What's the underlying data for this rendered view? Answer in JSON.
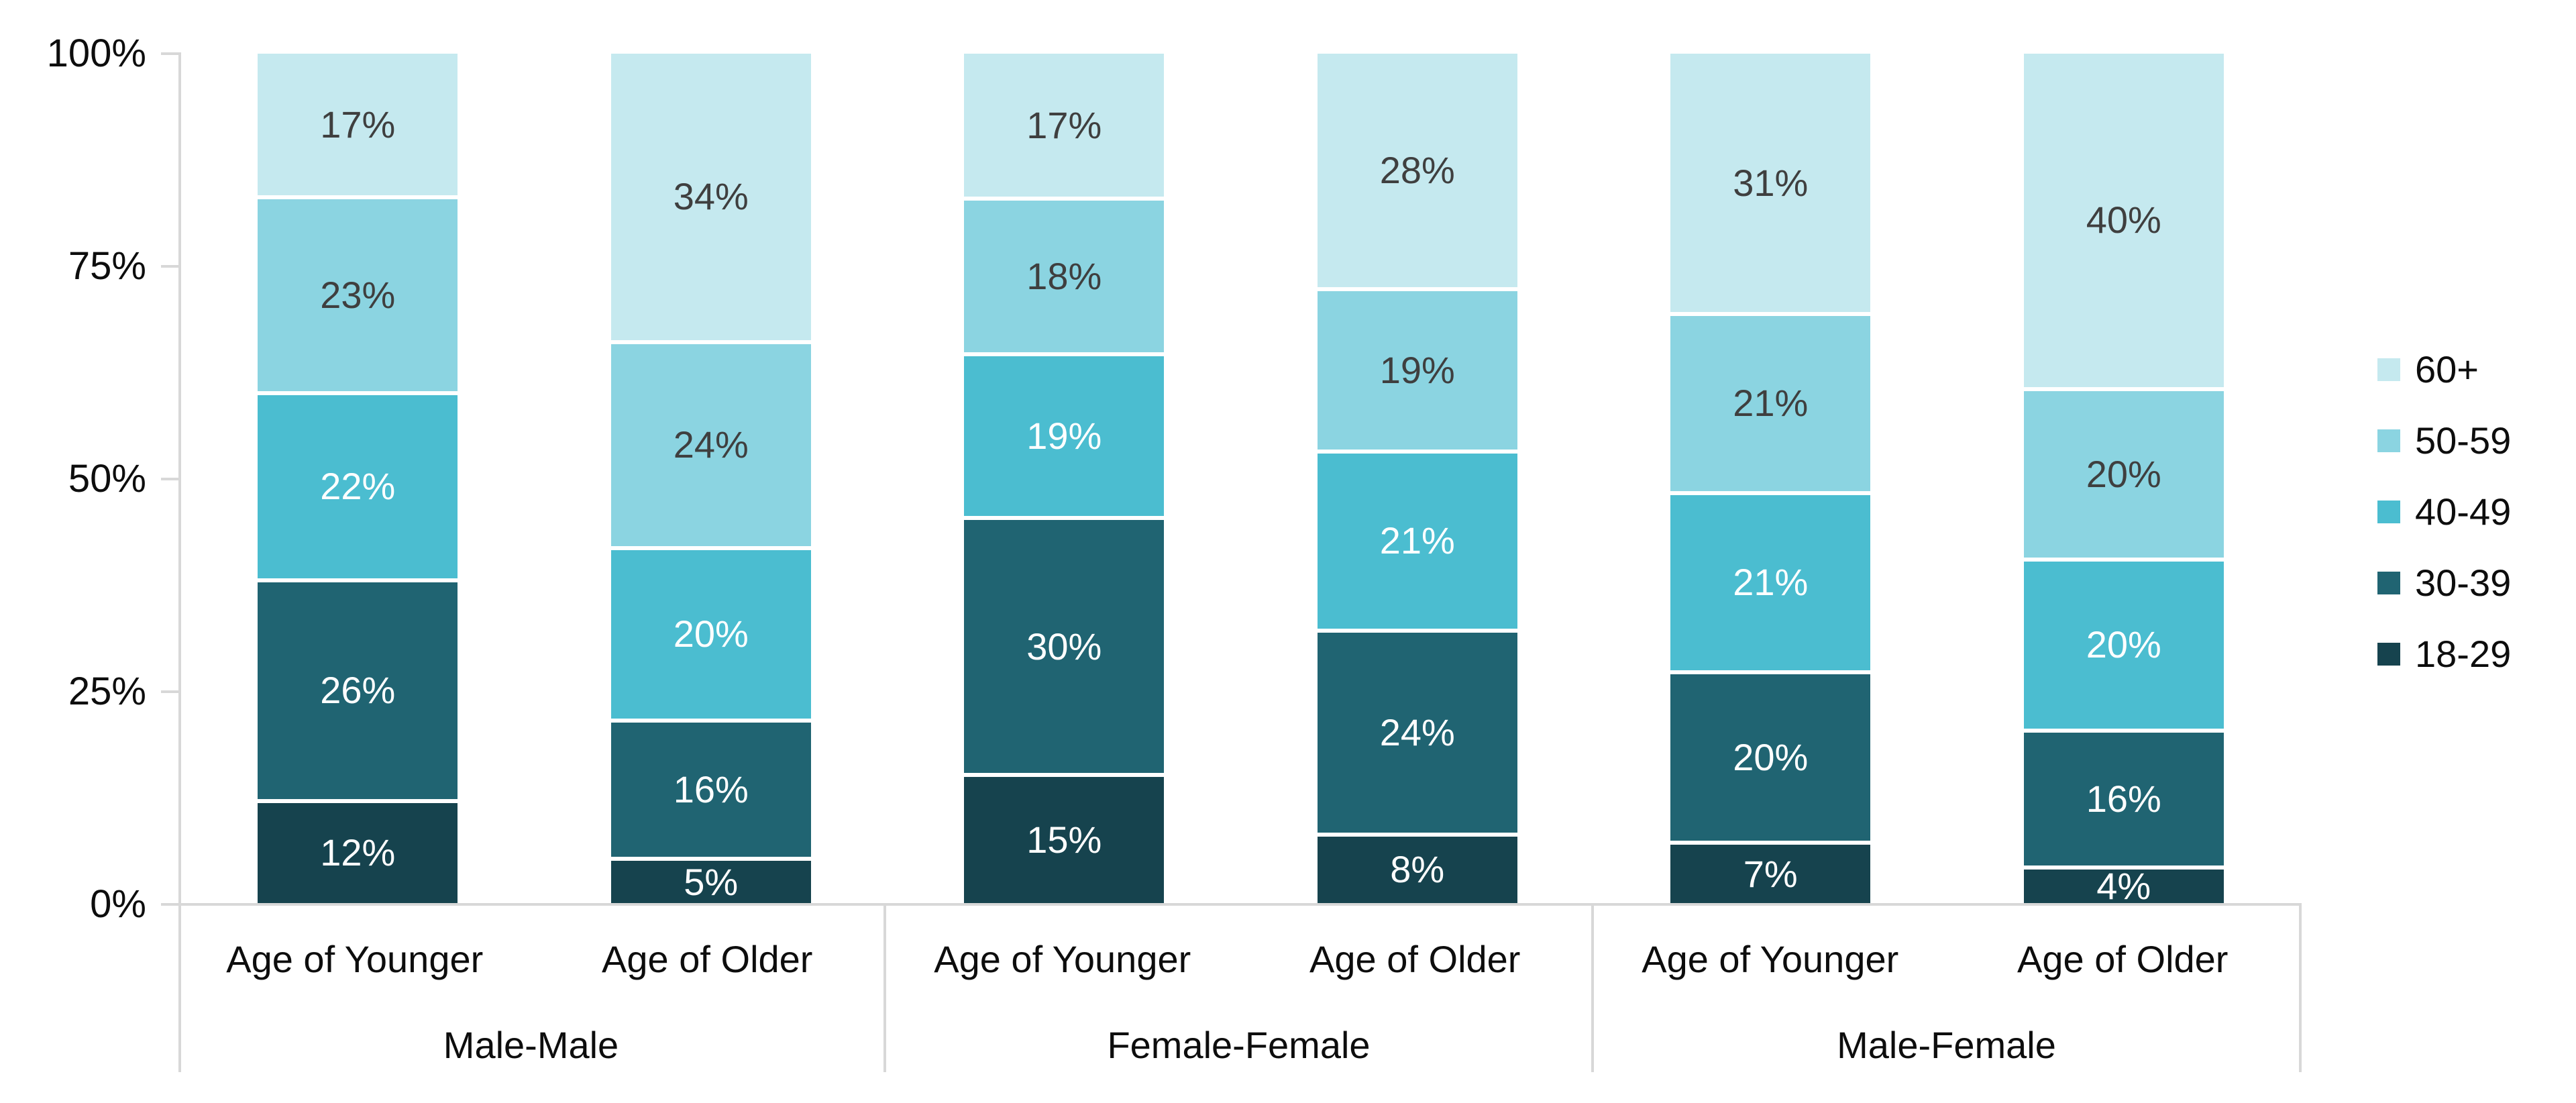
{
  "chart_data": {
    "type": "bar",
    "subtype": "100% stacked column",
    "title": "",
    "y_axis": {
      "range": [
        0,
        100
      ],
      "ticks": [
        {
          "value": 100,
          "label": "100%"
        },
        {
          "value": 75,
          "label": "75%"
        },
        {
          "value": 50,
          "label": "50%"
        },
        {
          "value": 25,
          "label": "25%"
        },
        {
          "value": 0,
          "label": "0%"
        }
      ]
    },
    "legend": {
      "position": "right",
      "entries": [
        "60+",
        "50-59",
        "40-49",
        "30-39",
        "18-29"
      ]
    },
    "series_order_bottom_to_top": [
      "18-29",
      "30-39",
      "40-49",
      "50-59",
      "60+"
    ],
    "palette": {
      "60+": "#C5E9EF",
      "50-59": "#8BD4E1",
      "40-49": "#4BBDD0",
      "30-39": "#206472",
      "18-29": "#16434E"
    },
    "data_label_colors": {
      "60+": "#3F3F3F",
      "50-59": "#3F3F3F",
      "40-49": "#FFFFFF",
      "30-39": "#FFFFFF",
      "18-29": "#FFFFFF"
    },
    "axis_color": "#D8D8D8",
    "text_color": "#0D0D0D",
    "value_suffix": "%",
    "groups": [
      {
        "label": "Male-Male",
        "bars": [
          {
            "label": "Age of Younger",
            "values": {
              "18-29": 12,
              "30-39": 26,
              "40-49": 22,
              "50-59": 23,
              "60+": 17
            }
          },
          {
            "label": "Age of Older",
            "values": {
              "18-29": 5,
              "30-39": 16,
              "40-49": 20,
              "50-59": 24,
              "60+": 34
            }
          }
        ]
      },
      {
        "label": "Female-Female",
        "bars": [
          {
            "label": "Age of Younger",
            "values": {
              "18-29": 15,
              "30-39": 30,
              "40-49": 19,
              "50-59": 18,
              "60+": 17
            }
          },
          {
            "label": "Age of Older",
            "values": {
              "18-29": 8,
              "30-39": 24,
              "40-49": 21,
              "50-59": 19,
              "60+": 28
            }
          }
        ]
      },
      {
        "label": "Male-Female",
        "bars": [
          {
            "label": "Age of Younger",
            "values": {
              "18-29": 7,
              "30-39": 20,
              "40-49": 21,
              "50-59": 21,
              "60+": 31
            }
          },
          {
            "label": "Age of Older",
            "values": {
              "18-29": 4,
              "30-39": 16,
              "40-49": 20,
              "50-59": 20,
              "60+": 40
            }
          }
        ]
      }
    ]
  }
}
